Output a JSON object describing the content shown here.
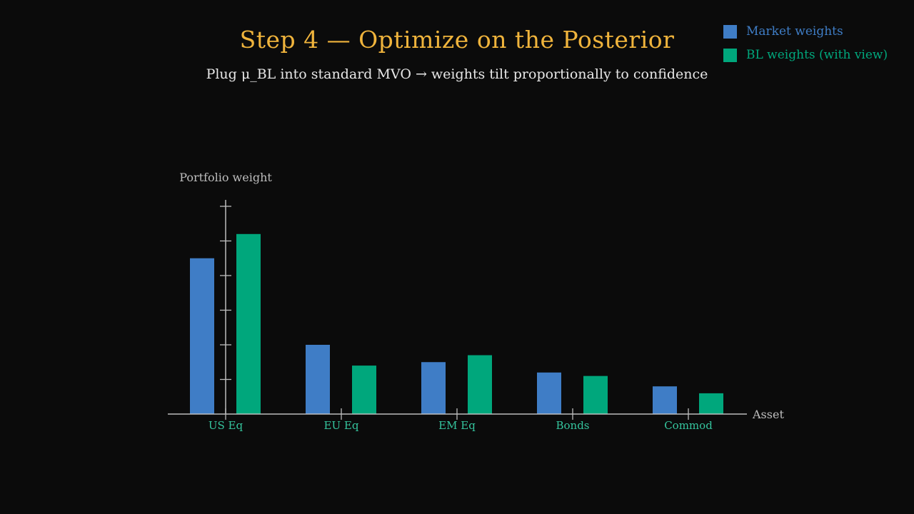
{
  "slide": {
    "title": "Step 4 — Optimize on the Posterior",
    "subtitle": "Plug μ_BL into standard MVO  →  weights tilt proportionally to confidence"
  },
  "colors": {
    "background": "#0b0b0b",
    "title": "#f0b43c",
    "market": "#3f7dc6",
    "bl": "#00a77c",
    "axis": "#bdbdbd",
    "tick_label": "#35c59e"
  },
  "chart_data": {
    "type": "bar",
    "ylabel": "Portfolio weight",
    "xlabel": "Asset",
    "categories": [
      "US Eq",
      "EU Eq",
      "EM Eq",
      "Bonds",
      "Commod"
    ],
    "series": [
      {
        "name": "Market weights",
        "values": [
          0.45,
          0.2,
          0.15,
          0.12,
          0.08
        ]
      },
      {
        "name": "BL weights (with view)",
        "values": [
          0.52,
          0.14,
          0.17,
          0.11,
          0.06
        ]
      }
    ],
    "ylim": [
      0,
      0.6
    ],
    "yticks": [
      0.1,
      0.2,
      0.3,
      0.4,
      0.5,
      0.6
    ],
    "legend_position": "top-right",
    "grid": false
  }
}
